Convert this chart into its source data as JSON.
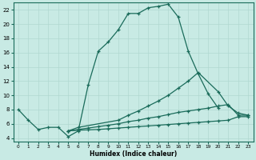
{
  "xlabel": "Humidex (Indice chaleur)",
  "bg_color": "#c8eae4",
  "grid_color": "#b0d8d0",
  "line_color": "#1a6b5a",
  "xlim": [
    -0.5,
    23.5
  ],
  "ylim": [
    3.5,
    23
  ],
  "xticks": [
    0,
    1,
    2,
    3,
    4,
    5,
    6,
    7,
    8,
    9,
    10,
    11,
    12,
    13,
    14,
    15,
    16,
    17,
    18,
    19,
    20,
    21,
    22,
    23
  ],
  "yticks": [
    4,
    6,
    8,
    10,
    12,
    14,
    16,
    18,
    20,
    22
  ],
  "s0_x": [
    0,
    1,
    2,
    3,
    4,
    5,
    6,
    7,
    8,
    9,
    10,
    11,
    12,
    13,
    14,
    15,
    16,
    17,
    18,
    19,
    20
  ],
  "s0_y": [
    8,
    6.5,
    5.2,
    5.5,
    5.5,
    4.2,
    5.0,
    11.5,
    16.2,
    17.5,
    19.2,
    21.5,
    21.5,
    22.3,
    22.5,
    22.8,
    21.0,
    16.2,
    13.0,
    10.2,
    8.2
  ],
  "s1_x": [
    5,
    6,
    10,
    11,
    12,
    13,
    14,
    15,
    16,
    17,
    18,
    20,
    21,
    22,
    23
  ],
  "s1_y": [
    5.0,
    5.5,
    6.5,
    7.2,
    7.8,
    8.5,
    9.2,
    10.0,
    11.0,
    12.0,
    13.2,
    10.5,
    8.5,
    7.5,
    7.2
  ],
  "s2_x": [
    5,
    6,
    7,
    8,
    9,
    10,
    11,
    12,
    13,
    14,
    15,
    16,
    17,
    18,
    19,
    20,
    21,
    22,
    23
  ],
  "s2_y": [
    5.0,
    5.2,
    5.4,
    5.6,
    5.8,
    6.0,
    6.3,
    6.5,
    6.8,
    7.0,
    7.3,
    7.6,
    7.8,
    8.0,
    8.2,
    8.5,
    8.7,
    7.2,
    7.2
  ],
  "s3_x": [
    5,
    6,
    7,
    8,
    9,
    10,
    11,
    12,
    13,
    14,
    15,
    16,
    17,
    18,
    19,
    20,
    21,
    22,
    23
  ],
  "s3_y": [
    5.0,
    5.1,
    5.15,
    5.2,
    5.3,
    5.4,
    5.5,
    5.6,
    5.7,
    5.8,
    5.9,
    6.0,
    6.1,
    6.2,
    6.3,
    6.4,
    6.5,
    7.0,
    7.0
  ]
}
